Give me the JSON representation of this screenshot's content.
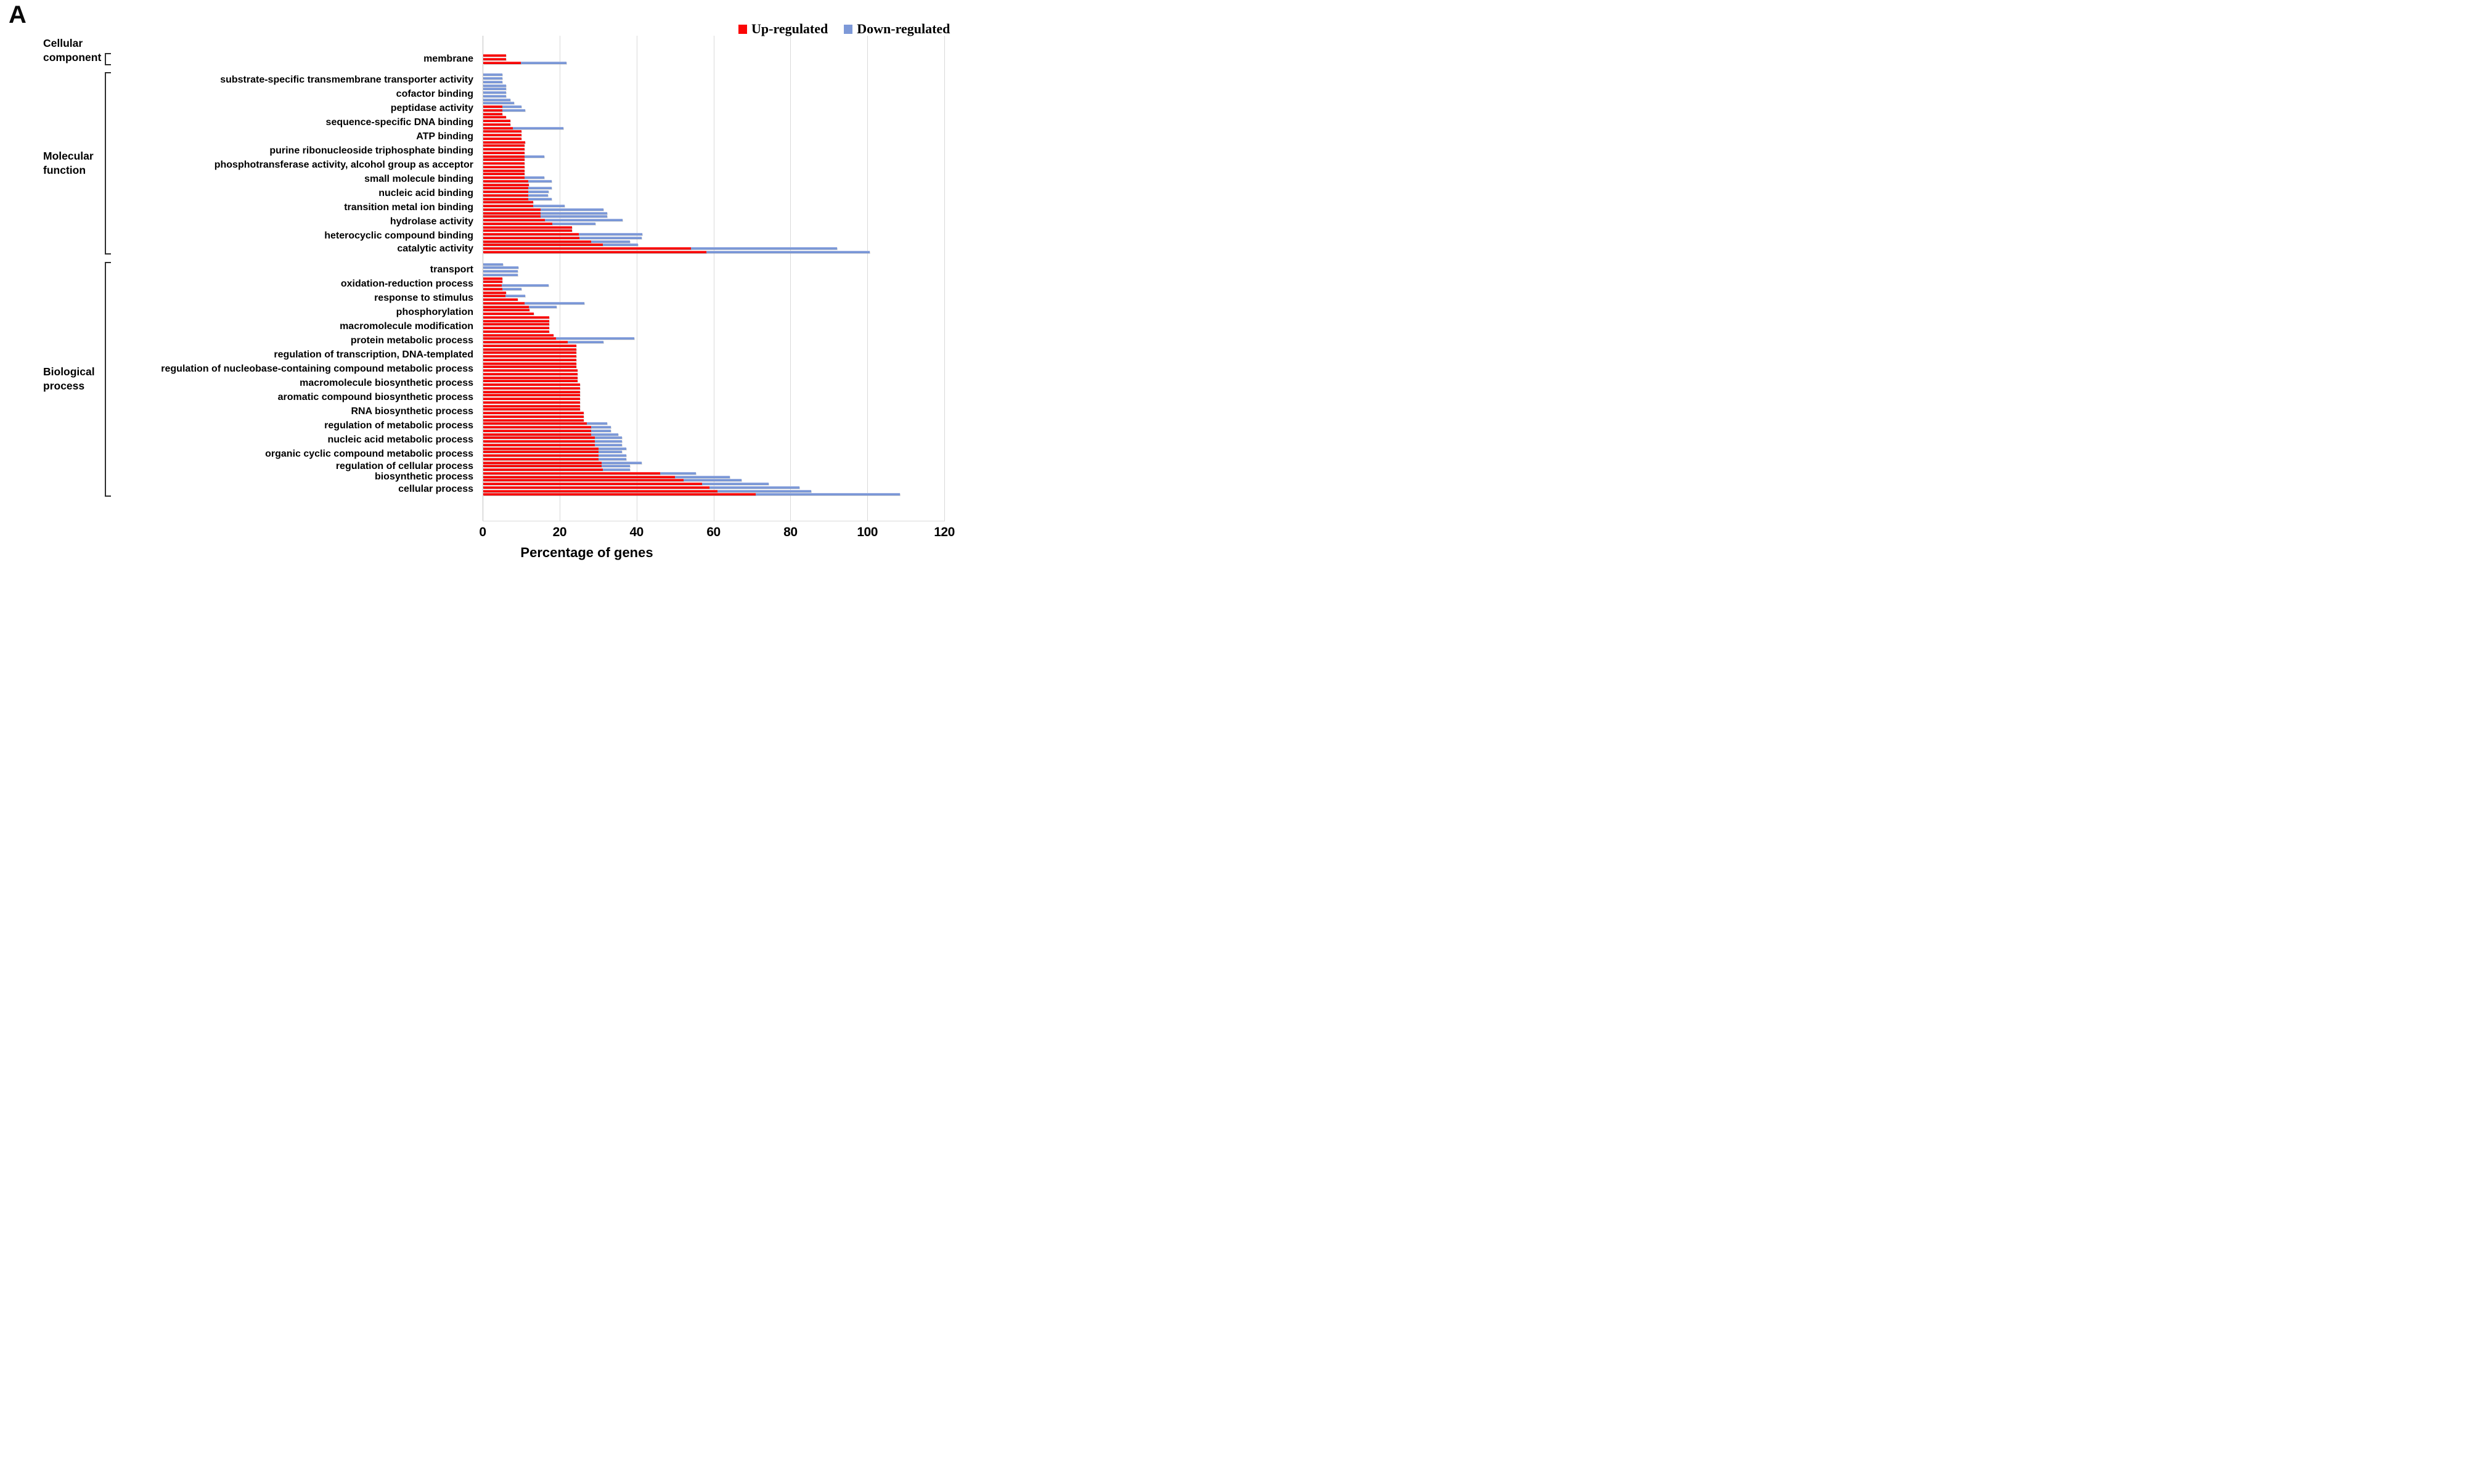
{
  "panel_label": "A",
  "legend": {
    "up_label": "Up-regulated",
    "down_label": "Down-regulated"
  },
  "colors": {
    "up": "#fb0606",
    "down": "#7d99d8",
    "gridline": "#d9d9d9",
    "axis_line": "#c0c0c0"
  },
  "axis": {
    "title": "Percentage of genes",
    "ticks": [
      0,
      20,
      40,
      60,
      80,
      100,
      120
    ],
    "max": 120
  },
  "chart_data": {
    "type": "bar",
    "orientation": "horizontal",
    "value_unit": "percent of genes",
    "series": [
      "Up-regulated",
      "Down-regulated"
    ],
    "xlim": [
      0,
      120
    ],
    "grid": "vertical, every 20",
    "note": "Each GO term label marks a cluster of thin bars; red = up-regulated, blue = down-regulated drawn behind red from 0, values as [up, down]",
    "groups": [
      {
        "category": "Cellular component",
        "category_lines": [
          "Cellular",
          "component"
        ],
        "terms": [
          {
            "label": "membrane",
            "rows": [
              [
                6,
                0
              ],
              [
                6,
                0
              ],
              [
                9.7,
                21.7
              ]
            ]
          }
        ]
      },
      {
        "category": "Molecular function",
        "category_lines": [
          "Molecular",
          "function"
        ],
        "terms": [
          {
            "label": "substrate-specific transmembrane transporter activity",
            "rows": [
              [
                0,
                5
              ],
              [
                0,
                5
              ],
              [
                0,
                5
              ],
              [
                0,
                6
              ]
            ]
          },
          {
            "label": "cofactor binding",
            "rows": [
              [
                0,
                6
              ],
              [
                0,
                6
              ],
              [
                0,
                6
              ],
              [
                0,
                7
              ]
            ]
          },
          {
            "label": "peptidase activity",
            "rows": [
              [
                0,
                8
              ],
              [
                4.9,
                10
              ],
              [
                4.9,
                10.9
              ],
              [
                5,
                0
              ]
            ]
          },
          {
            "label": "sequence-specific DNA binding",
            "rows": [
              [
                6,
                0
              ],
              [
                7,
                0
              ],
              [
                7,
                0
              ],
              [
                7.7,
                20.8
              ]
            ]
          },
          {
            "label": "ATP binding",
            "rows": [
              [
                10,
                0
              ],
              [
                10,
                0
              ],
              [
                9.9,
                0
              ],
              [
                10.9,
                0
              ]
            ]
          },
          {
            "label": "purine ribonucleoside triphosphate binding",
            "rows": [
              [
                10.8,
                0
              ],
              [
                10.8,
                0
              ],
              [
                10.8,
                0
              ],
              [
                10.7,
                15.9
              ]
            ]
          },
          {
            "label": "phosphotransferase activity, alcohol group as acceptor",
            "rows": [
              [
                10.8,
                0
              ],
              [
                10.8,
                0
              ],
              [
                10.8,
                0
              ],
              [
                10.8,
                0
              ]
            ]
          },
          {
            "label": "small molecule binding",
            "rows": [
              [
                10.8,
                0
              ],
              [
                10.7,
                15.9
              ],
              [
                11.7,
                17.8
              ],
              [
                11.9,
                0
              ]
            ]
          },
          {
            "label": "nucleic acid binding",
            "rows": [
              [
                11.7,
                17.8
              ],
              [
                11.7,
                16.9
              ],
              [
                11.7,
                16.8
              ],
              [
                11.7,
                17.8
              ]
            ]
          },
          {
            "label": "transition metal ion binding",
            "rows": [
              [
                12.9,
                0
              ],
              [
                12.9,
                21.2
              ],
              [
                14.9,
                31.2
              ],
              [
                14.9,
                32.2
              ]
            ]
          },
          {
            "label": "hydrolase activity",
            "rows": [
              [
                14.9,
                32.2
              ],
              [
                16,
                36.2
              ],
              [
                17.9,
                29.2
              ],
              [
                23.1,
                0
              ]
            ]
          },
          {
            "label": "heterocyclic compound binding",
            "rows": [
              [
                23.1,
                0
              ],
              [
                24.9,
                41.3
              ],
              [
                25,
                41.2
              ],
              [
                28,
                38.2
              ]
            ]
          },
          {
            "label": "catalytic activity",
            "rows": [
              [
                31,
                40.2
              ],
              [
                54,
                92
              ],
              [
                58,
                100.5
              ]
            ]
          }
        ]
      },
      {
        "category": "Biological process",
        "category_lines": [
          "Biological",
          "process"
        ],
        "terms": [
          {
            "label": "transport",
            "rows": [
              [
                0,
                5.1
              ],
              [
                0,
                9.2
              ],
              [
                0,
                9
              ],
              [
                0,
                9
              ]
            ]
          },
          {
            "label": "oxidation-reduction process",
            "rows": [
              [
                5,
                0
              ],
              [
                5,
                0
              ],
              [
                4.8,
                16.9
              ],
              [
                4.9,
                10
              ]
            ]
          },
          {
            "label": "response to stimulus",
            "rows": [
              [
                6,
                0
              ],
              [
                5.7,
                10.9
              ],
              [
                9,
                0
              ],
              [
                10.8,
                26.2
              ]
            ]
          },
          {
            "label": "phosphorylation",
            "rows": [
              [
                11.8,
                19.1
              ],
              [
                12,
                0
              ],
              [
                13.1,
                0
              ],
              [
                17.1,
                0
              ]
            ]
          },
          {
            "label": "macromolecule modification",
            "rows": [
              [
                17.1,
                0
              ],
              [
                17.1,
                0
              ],
              [
                17.1,
                0
              ],
              [
                17.1,
                0
              ]
            ]
          },
          {
            "label": "protein metabolic process",
            "rows": [
              [
                18.2,
                0
              ],
              [
                18.9,
                39.2
              ],
              [
                22,
                31.2
              ],
              [
                24.2,
                0
              ]
            ]
          },
          {
            "label": "regulation of transcription, DNA-templated",
            "rows": [
              [
                24.2,
                0
              ],
              [
                24.2,
                0
              ],
              [
                24.2,
                0
              ],
              [
                24.2,
                0
              ]
            ]
          },
          {
            "label": "regulation of nucleobase-containing compound metabolic process",
            "rows": [
              [
                24.2,
                0
              ],
              [
                24.2,
                0
              ],
              [
                24.5,
                0
              ],
              [
                24.5,
                0
              ]
            ]
          },
          {
            "label": "macromolecule biosynthetic process",
            "rows": [
              [
                24.5,
                0
              ],
              [
                24.5,
                0
              ],
              [
                25.1,
                0
              ],
              [
                25.1,
                0
              ]
            ]
          },
          {
            "label": "aromatic compound biosynthetic process",
            "rows": [
              [
                25.1,
                0
              ],
              [
                25.1,
                0
              ],
              [
                25.1,
                0
              ],
              [
                25.1,
                0
              ]
            ]
          },
          {
            "label": "RNA biosynthetic process",
            "rows": [
              [
                25.1,
                0
              ],
              [
                25.2,
                0
              ],
              [
                26.1,
                0
              ],
              [
                26.1,
                0
              ]
            ]
          },
          {
            "label": "regulation of metabolic process",
            "rows": [
              [
                26.1,
                0
              ],
              [
                26.9,
                32.2
              ],
              [
                28,
                33.2
              ],
              [
                28,
                33.2
              ]
            ]
          },
          {
            "label": "nucleic acid metabolic process",
            "rows": [
              [
                28,
                35
              ],
              [
                29,
                36.1
              ],
              [
                29,
                36.1
              ],
              [
                29,
                36.1
              ]
            ]
          },
          {
            "label": "organic cyclic compound metabolic process",
            "rows": [
              [
                30,
                37.1
              ],
              [
                29.9,
                36.1
              ],
              [
                29.9,
                37.2
              ],
              [
                29.9,
                37.1
              ]
            ]
          },
          {
            "label": "regulation of cellular process",
            "rows": [
              [
                30.8,
                41.2
              ],
              [
                30.8,
                38.2
              ],
              [
                31,
                38.2
              ]
            ]
          },
          {
            "label": "biosynthetic process",
            "rows": [
              [
                45.9,
                55.2
              ],
              [
                49.8,
                64.1
              ],
              [
                52,
                67.1
              ]
            ]
          },
          {
            "label": "cellular process",
            "rows": [
              [
                56.8,
                74.2
              ],
              [
                58.8,
                82.2
              ],
              [
                60.9,
                85.2
              ],
              [
                70.8,
                108.3
              ]
            ]
          }
        ]
      }
    ]
  },
  "layout_hints": {
    "category_brackets": [
      {
        "category": "Cellular component",
        "bracket": true
      },
      {
        "category": "Molecular function",
        "bracket": true
      },
      {
        "category": "Biological process",
        "bracket": true
      }
    ]
  }
}
